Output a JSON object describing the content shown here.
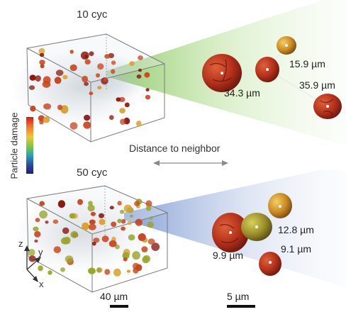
{
  "panels": {
    "top": {
      "cycle_label": "10 cyc",
      "distances": [
        "15.9 µm",
        "34.3 µm",
        "35.9 µm"
      ]
    },
    "bottom": {
      "cycle_label": "50 cyc",
      "distances": [
        "12.8 µm",
        "9.9 µm",
        "9.1 µm"
      ]
    }
  },
  "colorbar": {
    "label": "Particle damage",
    "colors": [
      "#d7191c",
      "#f47a2c",
      "#f2c532",
      "#7ac943",
      "#27a0b5",
      "#2c4ca2",
      "#1e1a78"
    ]
  },
  "center_arrow_label": "Distance to neighbor",
  "axes": {
    "z": "z",
    "y": "y",
    "x": "x"
  },
  "scale_bars": {
    "volume": "40 µm",
    "zoom": "5 µm"
  },
  "colors": {
    "top_beam": "#9fd47a",
    "bottom_beam": "#8ea7d8",
    "particle_dark": "#8a1a12",
    "particle_mid": "#c8461e",
    "particle_gold": "#d9a12c",
    "particle_green": "#9aa52c",
    "box_edge": "#777777"
  }
}
